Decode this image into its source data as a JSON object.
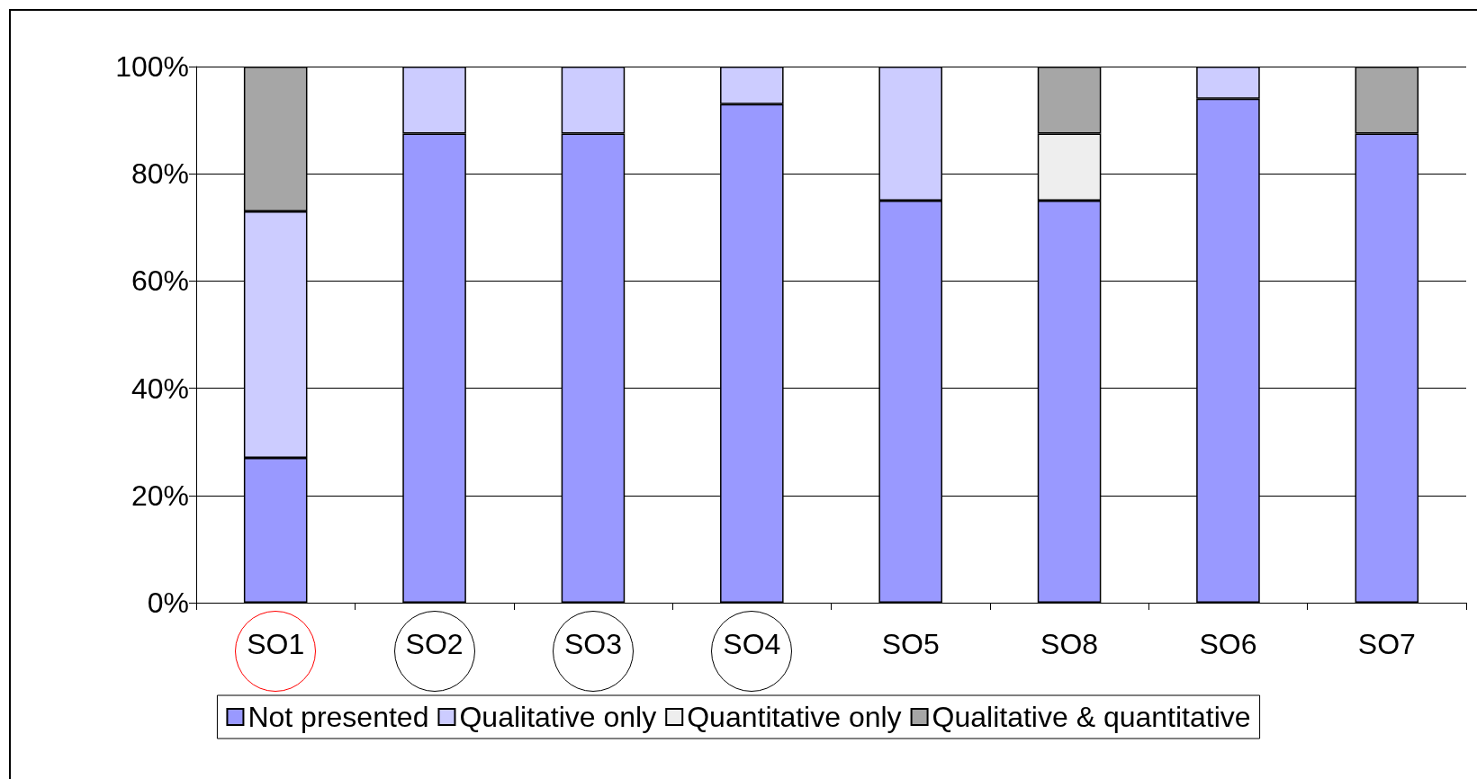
{
  "chart_data": {
    "type": "bar",
    "stacked": true,
    "categories": [
      "SO1",
      "SO2",
      "SO3",
      "SO4",
      "SO5",
      "SO8",
      "SO6",
      "SO7"
    ],
    "series": [
      {
        "name": "Not presented",
        "color": "#9999ff",
        "values": [
          27,
          87.5,
          87.5,
          93,
          75,
          75,
          94,
          87.5
        ]
      },
      {
        "name": "Qualitative only",
        "color": "#ccccff",
        "values": [
          46,
          12.5,
          12.5,
          7,
          25,
          0,
          6,
          0
        ]
      },
      {
        "name": "Quantitative only",
        "color": "#eeeeee",
        "values": [
          0,
          0,
          0,
          0,
          0,
          12.5,
          0,
          0
        ]
      },
      {
        "name": "Qualitative & quantitative",
        "color": "#a6a6a6",
        "values": [
          27,
          0,
          0,
          0,
          0,
          12.5,
          0,
          12.5
        ]
      }
    ],
    "ylim": [
      0,
      100
    ],
    "yticks": [
      {
        "value": 0,
        "label": "0%"
      },
      {
        "value": 20,
        "label": "20%"
      },
      {
        "value": 40,
        "label": "40%"
      },
      {
        "value": 60,
        "label": "60%"
      },
      {
        "value": 80,
        "label": "80%"
      },
      {
        "value": 100,
        "label": "100%"
      }
    ],
    "grid": "y",
    "legend": "bottom"
  }
}
